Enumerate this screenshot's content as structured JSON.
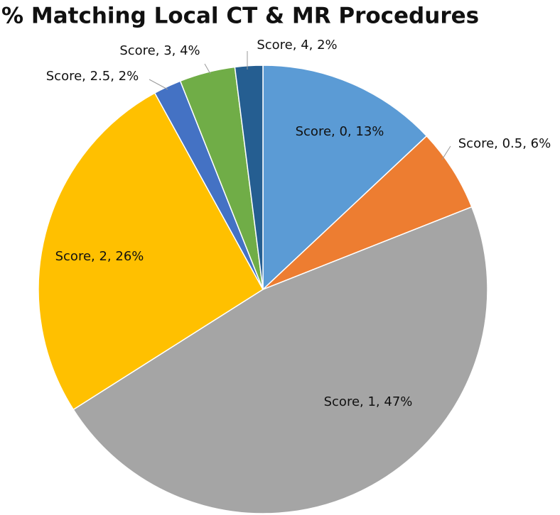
{
  "chart_data": {
    "type": "pie",
    "title": "% Matching Local CT & MR Procedures",
    "values": [
      13,
      6,
      47,
      26,
      2,
      4,
      2
    ],
    "value_labels": [
      "Score, 0, 13%",
      "Score, 0.5, 6%",
      "Score, 1, 47%",
      "Score, 2, 26%",
      "Score, 2.5, 2%",
      "Score, 3, 4%",
      "Score, 4, 2%"
    ],
    "colors": [
      "#5b9bd5",
      "#ed7d31",
      "#a5a5a5",
      "#ffc000",
      "#4472c4",
      "#70ad47",
      "#255e91"
    ]
  }
}
